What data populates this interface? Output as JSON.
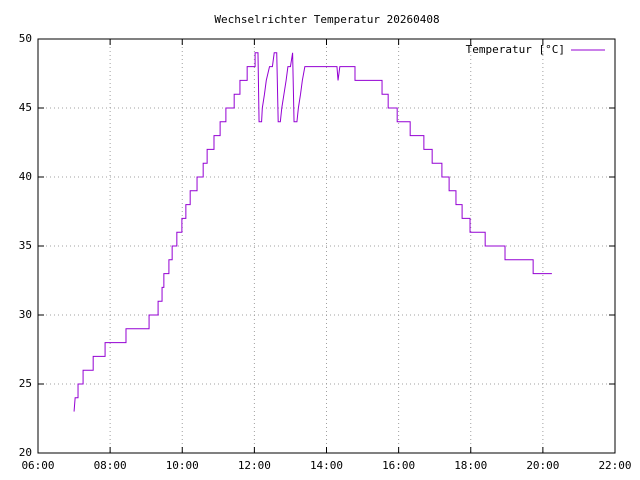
{
  "chart_data": {
    "type": "line",
    "title": "Wechselrichter Temperatur 20260408",
    "xlim": [
      6,
      22
    ],
    "xticks": [
      {
        "value": 6,
        "label": "06:00"
      },
      {
        "value": 8,
        "label": "08:00"
      },
      {
        "value": 10,
        "label": "10:00"
      },
      {
        "value": 12,
        "label": "12:00"
      },
      {
        "value": 14,
        "label": "14:00"
      },
      {
        "value": 16,
        "label": "16:00"
      },
      {
        "value": 18,
        "label": "18:00"
      },
      {
        "value": 20,
        "label": "20:00"
      },
      {
        "value": 22,
        "label": "22:00"
      }
    ],
    "ylim": [
      20,
      50
    ],
    "yticks": [
      20,
      25,
      30,
      35,
      40,
      45,
      50
    ],
    "grid": true,
    "legend": "top right",
    "x": [
      7.0,
      7.03,
      7.11,
      7.11,
      7.25,
      7.25,
      7.53,
      7.53,
      7.86,
      7.86,
      8.44,
      8.44,
      9.08,
      9.08,
      9.33,
      9.33,
      9.44,
      9.44,
      9.49,
      9.49,
      9.63,
      9.63,
      9.72,
      9.72,
      9.85,
      9.85,
      9.99,
      9.99,
      10.1,
      10.1,
      10.22,
      10.22,
      10.41,
      10.41,
      10.58,
      10.58,
      10.69,
      10.69,
      10.88,
      10.88,
      11.05,
      11.05,
      11.21,
      11.21,
      11.44,
      11.44,
      11.6,
      11.6,
      11.8,
      11.8,
      12.02,
      12.02,
      12.1,
      12.13,
      12.2,
      12.22,
      12.28,
      12.33,
      12.42,
      12.5,
      12.55,
      12.62,
      12.66,
      12.72,
      12.76,
      12.82,
      12.88,
      12.93,
      13.0,
      13.06,
      13.1,
      13.18,
      13.22,
      13.28,
      13.33,
      13.4,
      14.29,
      14.32,
      14.37,
      14.79,
      14.79,
      15.54,
      15.54,
      15.71,
      15.71,
      15.96,
      15.96,
      16.32,
      16.32,
      16.7,
      16.7,
      16.93,
      16.93,
      17.2,
      17.2,
      17.4,
      17.4,
      17.59,
      17.59,
      17.76,
      17.76,
      17.98,
      17.98,
      18.4,
      18.4,
      18.95,
      18.95,
      19.73,
      19.73,
      20.25
    ],
    "series": [
      {
        "name": "Temperatur [°C]",
        "color": "#9400d3",
        "values": [
          23,
          24,
          24,
          25,
          25,
          26,
          26,
          27,
          27,
          28,
          28,
          29,
          29,
          30,
          30,
          31,
          31,
          32,
          32,
          33,
          33,
          34,
          34,
          35,
          35,
          36,
          36,
          37,
          37,
          38,
          38,
          39,
          39,
          40,
          40,
          41,
          41,
          42,
          42,
          43,
          43,
          44,
          44,
          45,
          45,
          46,
          46,
          47,
          47,
          48,
          48,
          49,
          49,
          44,
          44,
          45,
          46,
          47,
          48,
          48,
          49,
          49,
          44,
          44,
          45,
          46,
          47,
          48,
          48,
          49,
          44,
          44,
          45,
          46,
          47,
          48,
          48,
          47,
          48,
          48,
          47,
          47,
          46,
          46,
          45,
          45,
          44,
          44,
          43,
          43,
          42,
          42,
          41,
          41,
          40,
          40,
          39,
          39,
          38,
          38,
          37,
          37,
          36,
          36,
          35,
          35,
          34,
          34,
          33,
          33
        ]
      }
    ]
  }
}
